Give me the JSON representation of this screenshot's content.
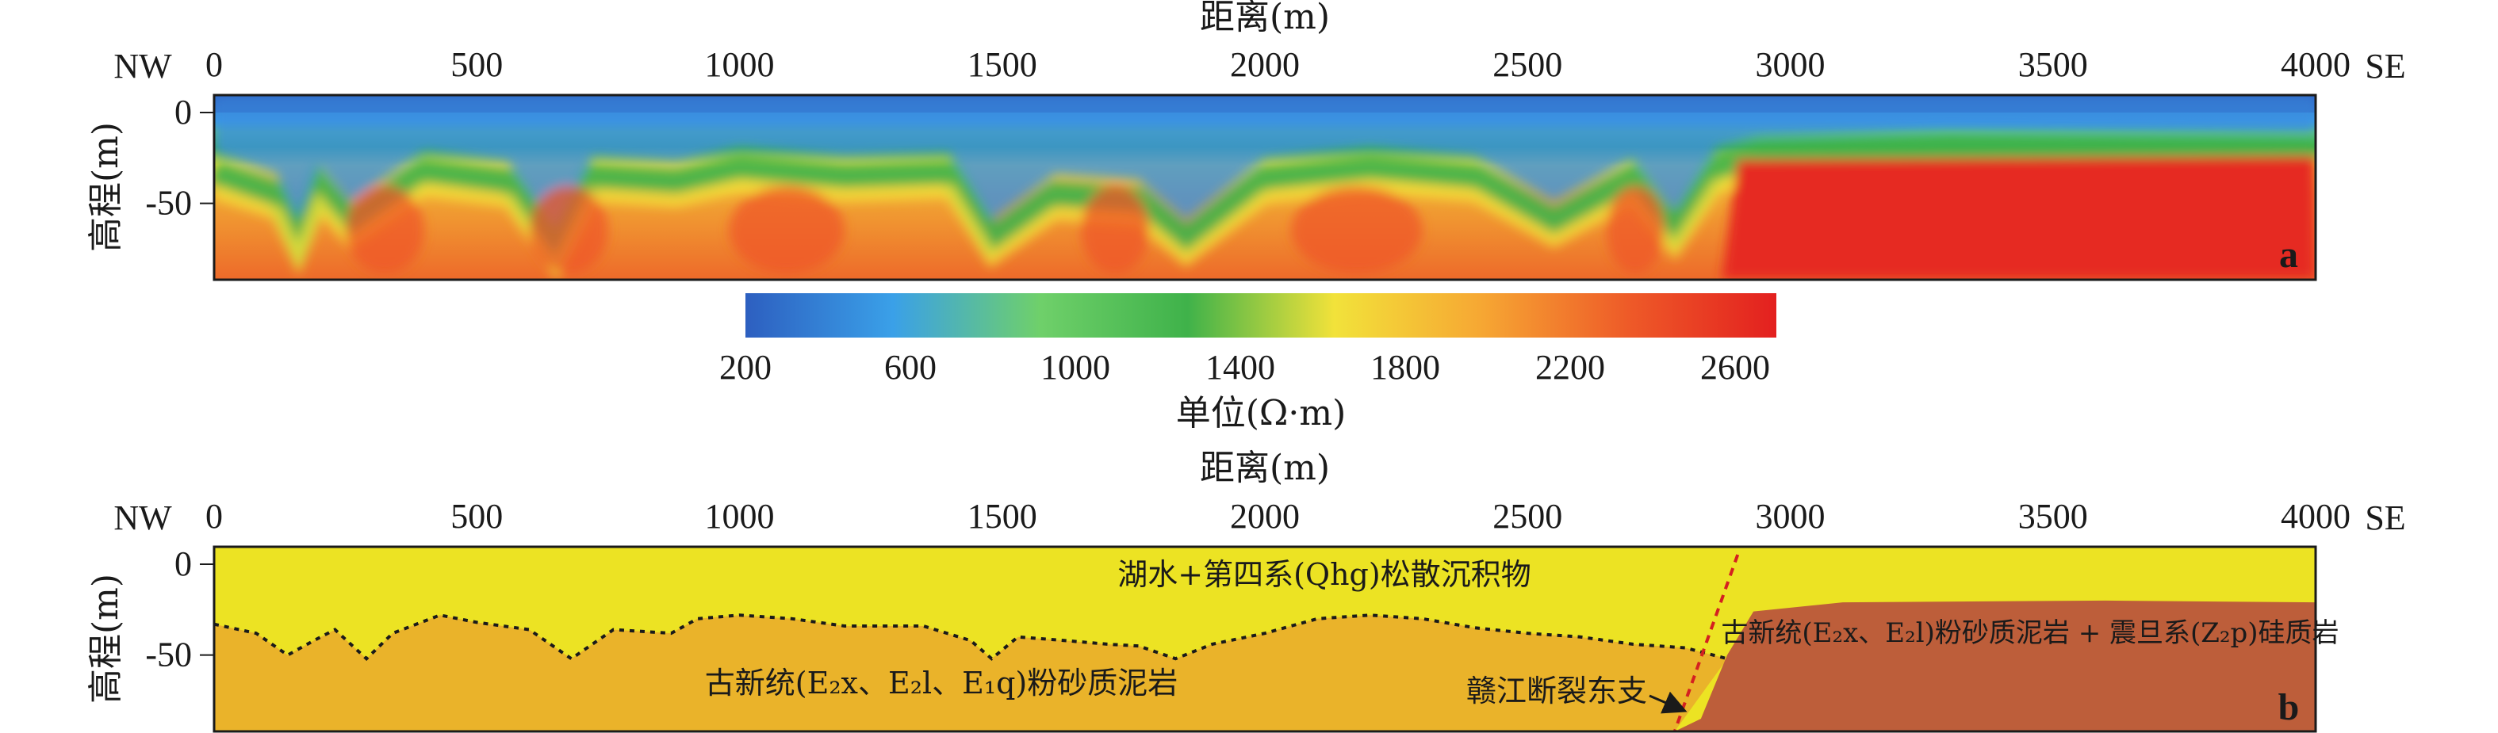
{
  "chart_data": [
    {
      "type": "heatmap",
      "panel_label": "a",
      "xlabel": "距离(m)",
      "ylabel": "高程(m)",
      "xlim": [
        0,
        4000
      ],
      "x_ticks": [
        "0",
        "500",
        "1000",
        "1500",
        "2000",
        "2500",
        "3000",
        "3500",
        "4000"
      ],
      "y_ticks": [
        "0",
        "-50"
      ],
      "left_end_label": "NW",
      "right_end_label": "SE",
      "colorbar": {
        "label": "单位(Ω·m)",
        "range": [
          200,
          2700
        ],
        "ticks": [
          "200",
          "600",
          "1000",
          "1400",
          "1800",
          "2200",
          "2600"
        ],
        "colors": [
          "#2d5fc0",
          "#3aa0e8",
          "#6fd06a",
          "#3fb24a",
          "#f2e23a",
          "#f6a733",
          "#ee5a28",
          "#e3201f"
        ]
      },
      "profile": {
        "surface_layer_bottom_depth_m": [
          {
            "x": 0,
            "d": -33
          },
          {
            "x": 120,
            "d": -45
          },
          {
            "x": 160,
            "d": -70
          },
          {
            "x": 200,
            "d": -40
          },
          {
            "x": 260,
            "d": -60
          },
          {
            "x": 400,
            "d": -32
          },
          {
            "x": 560,
            "d": -38
          },
          {
            "x": 650,
            "d": -75
          },
          {
            "x": 720,
            "d": -35
          },
          {
            "x": 880,
            "d": -38
          },
          {
            "x": 1000,
            "d": -30
          },
          {
            "x": 1200,
            "d": -35
          },
          {
            "x": 1400,
            "d": -33
          },
          {
            "x": 1480,
            "d": -70
          },
          {
            "x": 1600,
            "d": -45
          },
          {
            "x": 1760,
            "d": -48
          },
          {
            "x": 1850,
            "d": -70
          },
          {
            "x": 2000,
            "d": -36
          },
          {
            "x": 2200,
            "d": -30
          },
          {
            "x": 2400,
            "d": -35
          },
          {
            "x": 2550,
            "d": -60
          },
          {
            "x": 2700,
            "d": -36
          },
          {
            "x": 2780,
            "d": -65
          },
          {
            "x": 2860,
            "d": -30
          },
          {
            "x": 2940,
            "d": -24
          },
          {
            "x": 3300,
            "d": -20
          },
          {
            "x": 4000,
            "d": -22
          }
        ],
        "high_resistivity_block_start_m": 2900
      }
    },
    {
      "type": "area",
      "panel_label": "b",
      "xlabel": "距离(m)",
      "ylabel": "高程(m)",
      "xlim": [
        0,
        4000
      ],
      "x_ticks": [
        "0",
        "500",
        "1000",
        "1500",
        "2000",
        "2500",
        "3000",
        "3500",
        "4000"
      ],
      "y_ticks": [
        "0",
        "-50"
      ],
      "left_end_label": "NW",
      "right_end_label": "SE",
      "boundary_depth_m": [
        {
          "x": 0,
          "d": -33
        },
        {
          "x": 80,
          "d": -38
        },
        {
          "x": 140,
          "d": -50
        },
        {
          "x": 190,
          "d": -42
        },
        {
          "x": 230,
          "d": -36
        },
        {
          "x": 290,
          "d": -52
        },
        {
          "x": 340,
          "d": -38
        },
        {
          "x": 430,
          "d": -28
        },
        {
          "x": 500,
          "d": -32
        },
        {
          "x": 600,
          "d": -36
        },
        {
          "x": 680,
          "d": -52
        },
        {
          "x": 760,
          "d": -36
        },
        {
          "x": 870,
          "d": -38
        },
        {
          "x": 920,
          "d": -30
        },
        {
          "x": 1000,
          "d": -28
        },
        {
          "x": 1100,
          "d": -30
        },
        {
          "x": 1200,
          "d": -34
        },
        {
          "x": 1350,
          "d": -34
        },
        {
          "x": 1440,
          "d": -42
        },
        {
          "x": 1480,
          "d": -52
        },
        {
          "x": 1530,
          "d": -40
        },
        {
          "x": 1620,
          "d": -42
        },
        {
          "x": 1700,
          "d": -44
        },
        {
          "x": 1760,
          "d": -45
        },
        {
          "x": 1830,
          "d": -52
        },
        {
          "x": 1900,
          "d": -44
        },
        {
          "x": 2000,
          "d": -38
        },
        {
          "x": 2100,
          "d": -30
        },
        {
          "x": 2200,
          "d": -28
        },
        {
          "x": 2300,
          "d": -30
        },
        {
          "x": 2400,
          "d": -35
        },
        {
          "x": 2500,
          "d": -38
        },
        {
          "x": 2600,
          "d": -40
        },
        {
          "x": 2700,
          "d": -44
        },
        {
          "x": 2800,
          "d": -46
        },
        {
          "x": 2880,
          "d": -52
        }
      ],
      "fault": {
        "top_x": 2900,
        "bottom_x": 2780
      },
      "block_top_depth_m": [
        {
          "x": 2830,
          "d": -85
        },
        {
          "x": 2880,
          "d": -50
        },
        {
          "x": 2930,
          "d": -26
        },
        {
          "x": 3100,
          "d": -21
        },
        {
          "x": 3600,
          "d": -20
        },
        {
          "x": 4000,
          "d": -21
        }
      ],
      "units": [
        {
          "name": "湖水+第四系(Qhg)松散沉积物",
          "color": "#ece323"
        },
        {
          "name": "古新统(E₂x、E₂l、E₁q)粉砂质泥岩",
          "color": "#eab32a"
        },
        {
          "name": "古新统(E₂x、E₂l)粉砂质泥岩 + 震旦系(Z₂p)硅质岩",
          "color": "#bd5e3a"
        }
      ],
      "annotation": "赣江断裂东支"
    }
  ]
}
